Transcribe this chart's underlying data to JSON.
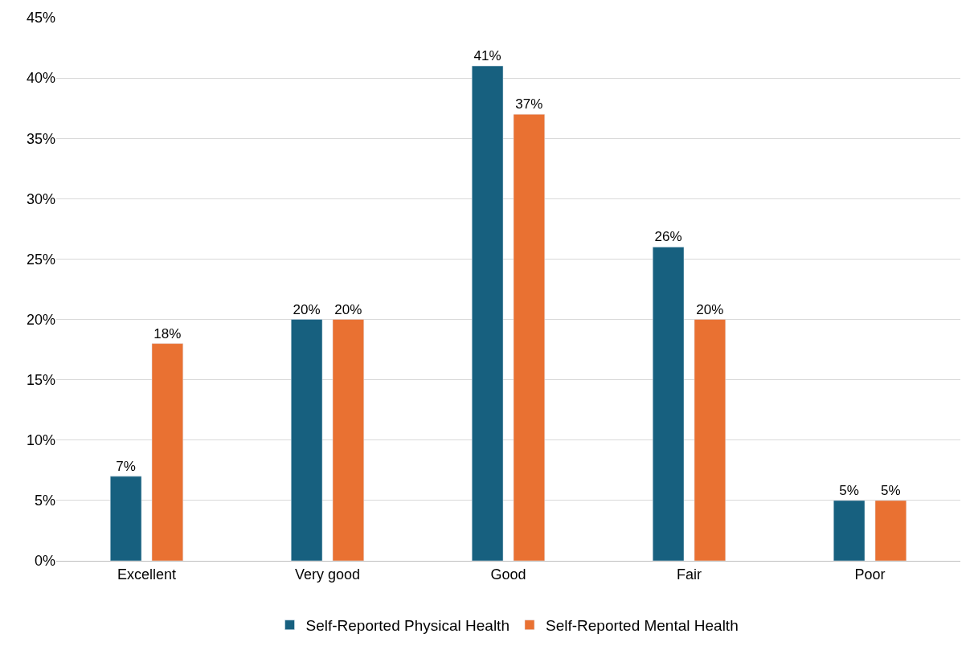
{
  "chart_data": {
    "type": "bar",
    "categories": [
      "Excellent",
      "Very good",
      "Good",
      "Fair",
      "Poor"
    ],
    "series": [
      {
        "name": "Self-Reported Physical Health",
        "color": "#17607f",
        "values": [
          7,
          20,
          41,
          26,
          5
        ],
        "value_labels": [
          "7%",
          "20%",
          "41%",
          "26%",
          "5%"
        ]
      },
      {
        "name": "Self-Reported Mental Health",
        "color": "#e97132",
        "values": [
          18,
          20,
          37,
          20,
          5
        ],
        "value_labels": [
          "18%",
          "20%",
          "37%",
          "20%",
          "5%"
        ]
      }
    ],
    "ylim": [
      0,
      45
    ],
    "yticks": [
      {
        "value": 0,
        "label": "0%"
      },
      {
        "value": 5,
        "label": "5%"
      },
      {
        "value": 10,
        "label": "10%"
      },
      {
        "value": 15,
        "label": "15%"
      },
      {
        "value": 20,
        "label": "20%"
      },
      {
        "value": 25,
        "label": "25%"
      },
      {
        "value": 30,
        "label": "30%"
      },
      {
        "value": 35,
        "label": "35%"
      },
      {
        "value": 40,
        "label": "40%"
      },
      {
        "value": 45,
        "label": "45%"
      }
    ],
    "grid": "y",
    "legend": "bottom"
  }
}
